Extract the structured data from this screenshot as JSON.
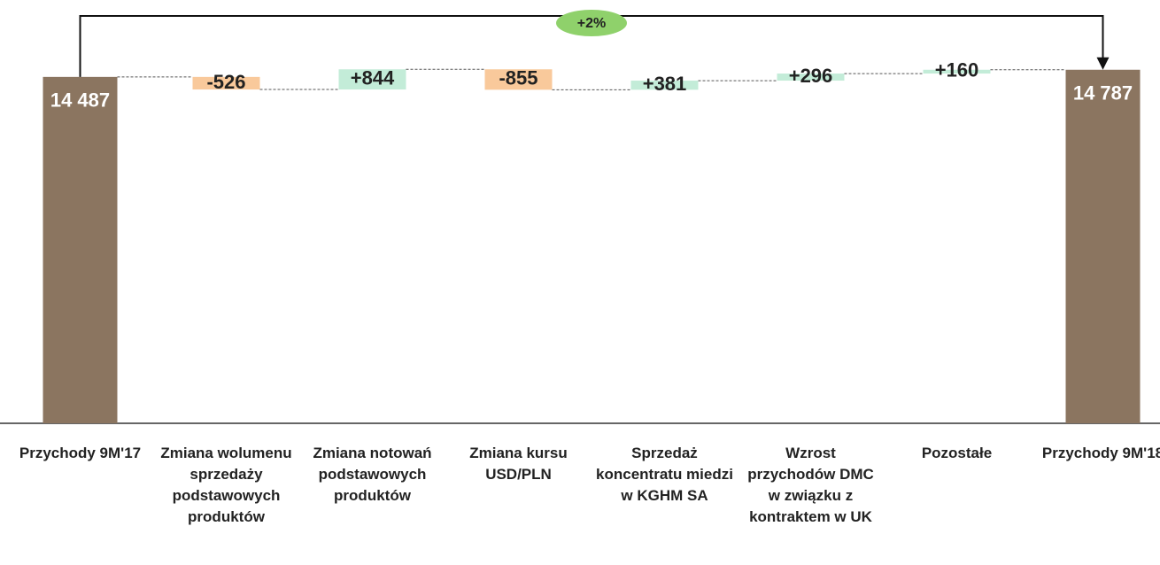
{
  "chart_data": {
    "type": "waterfall",
    "categories": [
      "Przychody 9M'17",
      "Zmiana wolumenu sprzedaży podstawowych produktów",
      "Zmiana notowań podstawowych produktów",
      "Zmiana kursu USD/PLN",
      "Sprzedaż koncentratu miedzi w KGHM SA",
      "Wzrost przychodów DMC w związku z kontraktem w UK",
      "Pozostałe",
      "Przychody 9M'18"
    ],
    "values": [
      14487,
      -526,
      844,
      -855,
      381,
      296,
      160,
      14787
    ],
    "value_labels": [
      "14 487",
      "-526",
      "+844",
      "-855",
      "+381",
      "+296",
      "+160",
      "14 787"
    ],
    "measure": [
      "absolute",
      "relative",
      "relative",
      "relative",
      "relative",
      "relative",
      "relative",
      "absolute"
    ],
    "colors": {
      "total": "#8b7560",
      "increase": "#c3ecd8",
      "decrease": "#f9c99b"
    },
    "ylim": [
      0,
      16000
    ],
    "annotation": "+2%"
  }
}
